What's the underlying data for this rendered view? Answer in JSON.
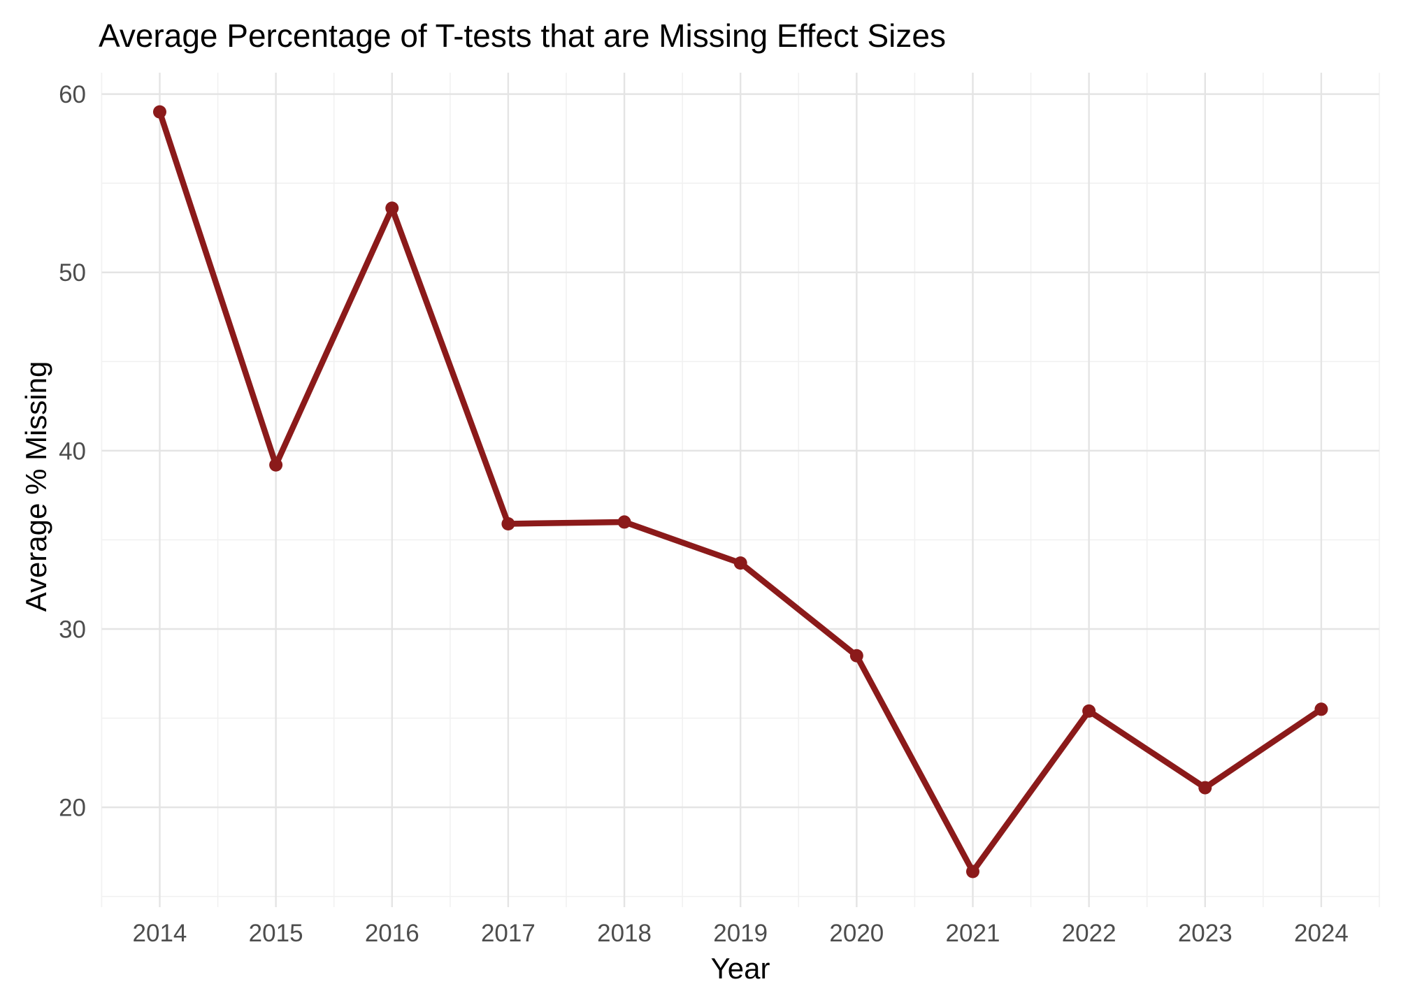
{
  "chart_data": {
    "type": "line",
    "title": "Average Percentage of T-tests that are Missing Effect Sizes",
    "xlabel": "Year",
    "ylabel": "Average % Missing",
    "x": [
      2014,
      2015,
      2016,
      2017,
      2018,
      2019,
      2020,
      2021,
      2022,
      2023,
      2024
    ],
    "values": [
      59.0,
      39.2,
      53.6,
      35.9,
      36.0,
      33.7,
      28.5,
      16.4,
      25.4,
      21.1,
      25.5
    ],
    "series": [
      {
        "name": "Average % Missing",
        "values": [
          59.0,
          39.2,
          53.6,
          35.9,
          36.0,
          33.7,
          28.5,
          16.4,
          25.4,
          21.1,
          25.5
        ]
      }
    ],
    "x_ticks": [
      2014,
      2015,
      2016,
      2017,
      2018,
      2019,
      2020,
      2021,
      2022,
      2023,
      2024
    ],
    "x_minor_ticks": [
      2013.5,
      2014.5,
      2015.5,
      2016.5,
      2017.5,
      2018.5,
      2019.5,
      2020.5,
      2021.5,
      2022.5,
      2023.5,
      2024.5
    ],
    "y_ticks": [
      20,
      30,
      40,
      50,
      60
    ],
    "y_minor_ticks": [
      15,
      25,
      35,
      45,
      55
    ],
    "xlim": [
      2013.5,
      2024.5
    ],
    "ylim": [
      14.4,
      61.2
    ],
    "grid": "major+minor",
    "legend": "none",
    "colors": {
      "line": "#8B1A1A",
      "point": "#8B1A1A",
      "grid_major": "#E4E4E4",
      "grid_minor": "#F1F1F1",
      "tick_label": "#4D4D4D",
      "title_text": "#000000",
      "background": "#FFFFFF"
    }
  }
}
